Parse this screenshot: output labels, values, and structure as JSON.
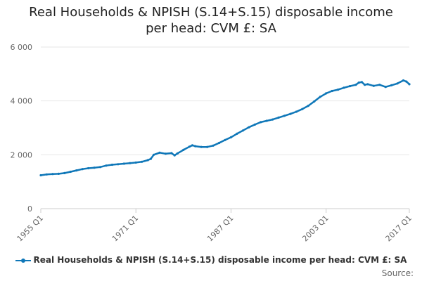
{
  "chart_data": {
    "type": "line",
    "title_lines": [
      "Real Households & NPISH (S.14+S.15) disposable income",
      "per head: CVM £: SA"
    ],
    "xlabel": "",
    "ylabel": "",
    "ylim": [
      0,
      6000
    ],
    "y_ticks": [
      0,
      2000,
      4000,
      6000
    ],
    "y_tick_labels": [
      "0",
      "2 000",
      "4 000",
      "6 000"
    ],
    "x_tick_labels": [
      "1955 Q1",
      "1971 Q1",
      "1987 Q1",
      "2003 Q1",
      "2017 Q1"
    ],
    "x_range": [
      1955.0,
      2017.0
    ],
    "grid": "horizontal",
    "legend_position": "bottom",
    "series": [
      {
        "name": "Real Households & NPISH (S.14+S.15) disposable income per head: CVM £: SA",
        "color": "#0f77b8",
        "points": [
          [
            1955.0,
            1240
          ],
          [
            1956.0,
            1270
          ],
          [
            1957.0,
            1285
          ],
          [
            1958.0,
            1295
          ],
          [
            1959.0,
            1320
          ],
          [
            1960.0,
            1370
          ],
          [
            1961.0,
            1420
          ],
          [
            1962.0,
            1470
          ],
          [
            1963.0,
            1500
          ],
          [
            1964.0,
            1520
          ],
          [
            1965.0,
            1545
          ],
          [
            1966.0,
            1600
          ],
          [
            1967.0,
            1630
          ],
          [
            1968.0,
            1650
          ],
          [
            1969.0,
            1670
          ],
          [
            1970.0,
            1690
          ],
          [
            1971.0,
            1710
          ],
          [
            1972.0,
            1740
          ],
          [
            1973.0,
            1800
          ],
          [
            1973.5,
            1850
          ],
          [
            1974.0,
            2000
          ],
          [
            1975.0,
            2080
          ],
          [
            1976.0,
            2040
          ],
          [
            1977.0,
            2060
          ],
          [
            1977.5,
            1980
          ],
          [
            1978.0,
            2050
          ],
          [
            1979.0,
            2180
          ],
          [
            1980.0,
            2300
          ],
          [
            1980.5,
            2350
          ],
          [
            1981.0,
            2320
          ],
          [
            1982.0,
            2290
          ],
          [
            1983.0,
            2290
          ],
          [
            1984.0,
            2340
          ],
          [
            1985.0,
            2440
          ],
          [
            1986.0,
            2550
          ],
          [
            1987.0,
            2650
          ],
          [
            1988.0,
            2780
          ],
          [
            1989.0,
            2900
          ],
          [
            1990.0,
            3020
          ],
          [
            1991.0,
            3120
          ],
          [
            1992.0,
            3210
          ],
          [
            1993.0,
            3260
          ],
          [
            1994.0,
            3310
          ],
          [
            1995.0,
            3380
          ],
          [
            1996.0,
            3450
          ],
          [
            1997.0,
            3520
          ],
          [
            1998.0,
            3600
          ],
          [
            1999.0,
            3700
          ],
          [
            2000.0,
            3820
          ],
          [
            2001.0,
            3980
          ],
          [
            2002.0,
            4150
          ],
          [
            2003.0,
            4280
          ],
          [
            2004.0,
            4370
          ],
          [
            2005.0,
            4420
          ],
          [
            2006.0,
            4490
          ],
          [
            2007.0,
            4550
          ],
          [
            2008.0,
            4600
          ],
          [
            2008.5,
            4680
          ],
          [
            2009.0,
            4700
          ],
          [
            2009.5,
            4600
          ],
          [
            2010.0,
            4620
          ],
          [
            2011.0,
            4560
          ],
          [
            2012.0,
            4600
          ],
          [
            2013.0,
            4520
          ],
          [
            2014.0,
            4580
          ],
          [
            2015.0,
            4650
          ],
          [
            2016.0,
            4760
          ],
          [
            2016.5,
            4720
          ],
          [
            2017.0,
            4620
          ]
        ]
      }
    ]
  },
  "legend_label": "Real Households & NPISH (S.14+S.15) disposable income per head: CVM £: SA",
  "source_label": "Source:"
}
